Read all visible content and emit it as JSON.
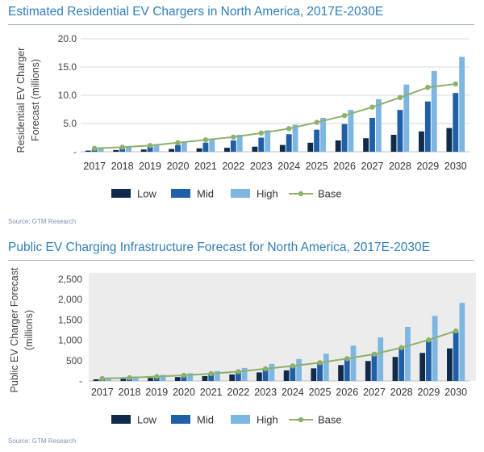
{
  "colors": {
    "low": "#0f2a4a",
    "mid": "#1f5fa8",
    "high": "#7eb6e2",
    "base": "#8db16a",
    "title": "#2f7fb8"
  },
  "chart_data": [
    {
      "type": "bar",
      "title": "Estimated Residential EV Chargers in North America, 2017E-2030E",
      "ylabel": "Residential EV Charger Forecast (millions)",
      "ylabel_lines": [
        "Residential EV Charger",
        "Forecast (millions)"
      ],
      "xlabel": "",
      "ylim": [
        0,
        20
      ],
      "yticks": [
        0,
        5,
        10,
        15,
        20
      ],
      "ytick_labels": [
        "-",
        "5.0",
        "10.0",
        "15.0",
        "20.0"
      ],
      "grid": true,
      "legend": "bottom",
      "categories": [
        "2017",
        "2018",
        "2019",
        "2020",
        "2021",
        "2022",
        "2023",
        "2024",
        "2025",
        "2026",
        "2027",
        "2028",
        "2029",
        "2030"
      ],
      "series": [
        {
          "name": "Low",
          "kind": "bar",
          "values": [
            0.2,
            0.3,
            0.4,
            0.5,
            0.6,
            0.7,
            0.9,
            1.2,
            1.6,
            2.0,
            2.4,
            3.0,
            3.6,
            4.2
          ]
        },
        {
          "name": "Mid",
          "kind": "bar",
          "values": [
            0.4,
            0.6,
            0.9,
            1.2,
            1.6,
            2.0,
            2.5,
            3.1,
            3.9,
            4.9,
            6.0,
            7.4,
            8.9,
            10.4
          ]
        },
        {
          "name": "High",
          "kind": "bar",
          "values": [
            0.6,
            0.9,
            1.3,
            1.8,
            2.3,
            3.0,
            3.8,
            4.8,
            6.0,
            7.4,
            9.3,
            11.9,
            14.3,
            16.8
          ]
        },
        {
          "name": "Base",
          "kind": "line",
          "values": [
            0.6,
            0.8,
            1.1,
            1.6,
            2.1,
            2.6,
            3.3,
            4.1,
            5.2,
            6.4,
            7.9,
            9.6,
            11.4,
            12.0
          ]
        }
      ],
      "source": "Source: GTM Research"
    },
    {
      "type": "bar",
      "title": "Public EV Charging Infrastructure Forecast for North America, 2017E-2030E",
      "ylabel": "Public EV Charger Forecast (millions)",
      "ylabel_lines": [
        "Public EV Charger Forecast",
        "(millions)"
      ],
      "xlabel": "",
      "ylim": [
        0,
        2500
      ],
      "yticks": [
        0,
        500,
        1000,
        1500,
        2000,
        2500
      ],
      "ytick_labels": [
        "-",
        "500",
        "1,000",
        "1,500",
        "2,000",
        "2,500"
      ],
      "grid": false,
      "legend": "bottom",
      "categories": [
        "2017",
        "2018",
        "2019",
        "2020",
        "2021",
        "2022",
        "2023",
        "2024",
        "2025",
        "2026",
        "2027",
        "2028",
        "2029",
        "2030"
      ],
      "series": [
        {
          "name": "Low",
          "kind": "bar",
          "values": [
            40,
            55,
            75,
            95,
            120,
            160,
            210,
            260,
            310,
            390,
            490,
            590,
            690,
            800
          ]
        },
        {
          "name": "Mid",
          "kind": "bar",
          "values": [
            60,
            80,
            110,
            140,
            180,
            230,
            300,
            370,
            450,
            550,
            660,
            810,
            1000,
            1210
          ]
        },
        {
          "name": "High",
          "kind": "bar",
          "values": [
            80,
            110,
            150,
            190,
            240,
            320,
            420,
            540,
            670,
            870,
            1070,
            1330,
            1600,
            1920
          ]
        },
        {
          "name": "Base",
          "kind": "line",
          "values": [
            60,
            80,
            110,
            140,
            180,
            230,
            300,
            370,
            450,
            550,
            660,
            820,
            1010,
            1230
          ]
        }
      ],
      "source": "Source: GTM Research"
    }
  ]
}
